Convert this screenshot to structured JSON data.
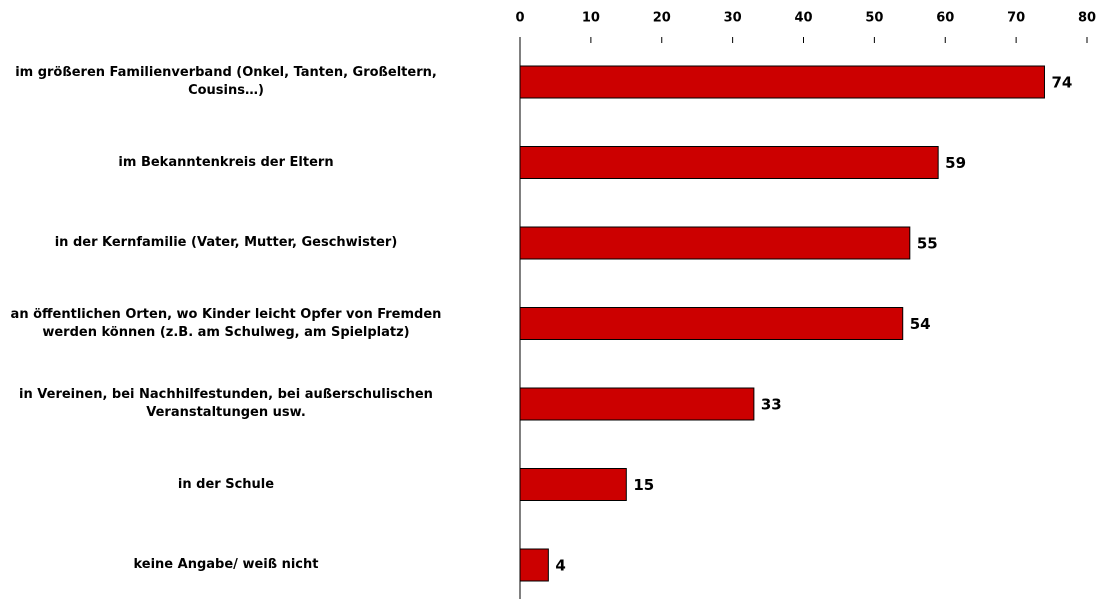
{
  "chart_data": {
    "type": "bar",
    "orientation": "horizontal",
    "categories": [
      "im größeren Familienverband (Onkel, Tanten, Großeltern,\nCousins…)",
      "im Bekanntenkreis der Eltern",
      "in der Kernfamilie (Vater, Mutter, Geschwister)",
      "an öffentlichen Orten, wo Kinder leicht Opfer von Fremden\nwerden können (z.B. am Schulweg, am Spielplatz)",
      "in Vereinen, bei Nachhilfestunden, bei außerschulischen\nVeranstaltungen usw.",
      "in der Schule",
      "keine Angabe/ weiß nicht"
    ],
    "values": [
      74,
      59,
      55,
      54,
      33,
      15,
      4
    ],
    "color": "#cc0000",
    "xlim": [
      0,
      80
    ],
    "xticks": [
      0,
      10,
      20,
      30,
      40,
      50,
      60,
      70,
      80
    ],
    "grid": false
  }
}
